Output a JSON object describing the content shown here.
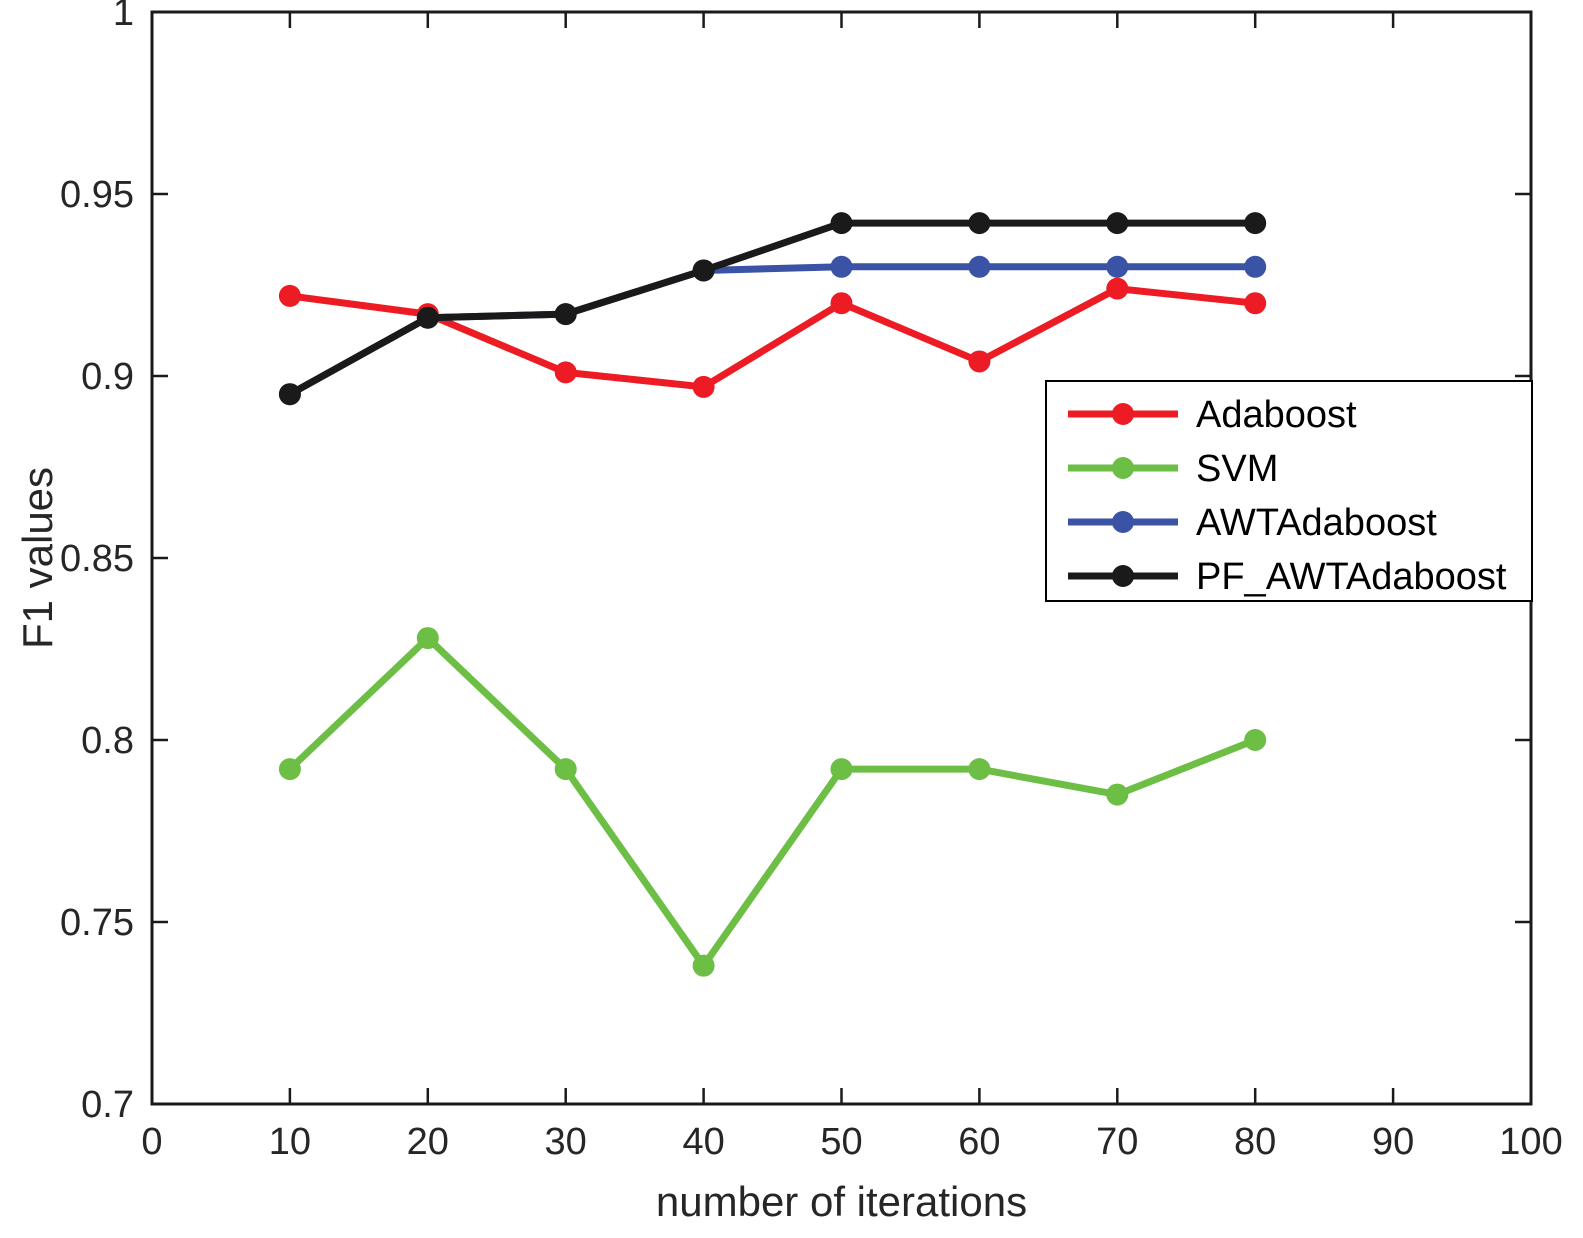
{
  "chart_data": {
    "type": "line",
    "title": "",
    "xlabel": "number of iterations",
    "ylabel": "F1 values",
    "xlim": [
      0,
      100
    ],
    "ylim": [
      0.7,
      1.0
    ],
    "xticks": [
      0,
      10,
      20,
      30,
      40,
      50,
      60,
      70,
      80,
      90,
      100
    ],
    "xtick_labels": [
      "0",
      "10",
      "20",
      "30",
      "40",
      "50",
      "60",
      "70",
      "80",
      "90",
      "100"
    ],
    "yticks": [
      0.7,
      0.75,
      0.8,
      0.85,
      0.9,
      0.95,
      1
    ],
    "ytick_labels": [
      "0.7",
      "0.75",
      "0.8",
      "0.85",
      "0.9",
      "0.95",
      "1"
    ],
    "grid": false,
    "axis_color": "#1a1a1a",
    "text_color": "#262626",
    "line_width": 7,
    "marker_radius": 11,
    "legend": {
      "position": "inside-upper-right",
      "border_color": "#000000",
      "background": "#ffffff",
      "entries": [
        "Adaboost",
        "SVM",
        "AWTAdaboost",
        "PF_AWTAdaboost"
      ]
    },
    "x": [
      10,
      20,
      30,
      40,
      50,
      60,
      70,
      80
    ],
    "series": [
      {
        "name": "Adaboost",
        "color": "#ed1c24",
        "values": [
          0.922,
          0.917,
          0.901,
          0.897,
          0.92,
          0.904,
          0.924,
          0.92
        ]
      },
      {
        "name": "SVM",
        "color": "#6cbe45",
        "values": [
          0.792,
          0.828,
          0.792,
          0.738,
          0.792,
          0.792,
          0.785,
          0.8
        ]
      },
      {
        "name": "AWTAdaboost",
        "color": "#3a53a4",
        "values": [
          0.895,
          0.916,
          0.917,
          0.929,
          0.93,
          0.93,
          0.93,
          0.93
        ]
      },
      {
        "name": "PF_AWTAdaboost",
        "color": "#1a1a1a",
        "values": [
          0.895,
          0.916,
          0.917,
          0.929,
          0.942,
          0.942,
          0.942,
          0.942
        ]
      }
    ]
  }
}
